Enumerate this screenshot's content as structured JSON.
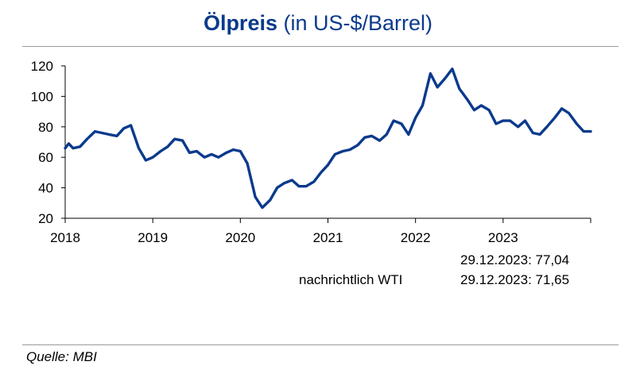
{
  "header": {
    "title_bold": "Ölpreis",
    "title_rest": "(in US-$/Barrel)"
  },
  "notes": {
    "brent_value": "29.12.2023: 77,04",
    "wti_label": "nachrichtlich WTI",
    "wti_value": "29.12.2023: 71,65"
  },
  "footer": {
    "source": "Quelle: MBI"
  },
  "chart_data": {
    "type": "line",
    "title": "Ölpreis (in US-$/Barrel)",
    "xlabel": "",
    "ylabel": "",
    "ylim": [
      20,
      120
    ],
    "xlim": [
      2018,
      2024
    ],
    "yticks": [
      20,
      40,
      60,
      80,
      100,
      120
    ],
    "xticks": [
      2018,
      2019,
      2020,
      2021,
      2022,
      2023
    ],
    "grid": false,
    "legend": "none",
    "color": "#0b3a8c",
    "series": [
      {
        "x": [
          2018.0,
          2018.04,
          2018.09,
          2018.17,
          2018.25,
          2018.34,
          2018.42,
          2018.5,
          2018.59,
          2018.67,
          2018.75,
          2018.84,
          2018.92,
          2019.0,
          2019.09,
          2019.17,
          2019.25,
          2019.34,
          2019.42,
          2019.5,
          2019.59,
          2019.67,
          2019.75,
          2019.84,
          2019.92,
          2020.0,
          2020.08,
          2020.17,
          2020.25,
          2020.34,
          2020.42,
          2020.5,
          2020.59,
          2020.67,
          2020.75,
          2020.84,
          2020.92,
          2021.0,
          2021.08,
          2021.17,
          2021.25,
          2021.34,
          2021.42,
          2021.5,
          2021.59,
          2021.67,
          2021.75,
          2021.84,
          2021.92,
          2022.0,
          2022.08,
          2022.17,
          2022.25,
          2022.34,
          2022.42,
          2022.5,
          2022.59,
          2022.67,
          2022.75,
          2022.84,
          2022.92,
          2023.0,
          2023.08,
          2023.17,
          2023.25,
          2023.34,
          2023.42,
          2023.5,
          2023.59,
          2023.67,
          2023.75,
          2023.84,
          2023.92,
          2024.0
        ],
        "y": [
          66,
          69,
          66,
          67,
          72,
          77,
          76,
          75,
          74,
          79,
          81,
          66,
          58,
          60,
          64,
          67,
          72,
          71,
          63,
          64,
          60,
          62,
          60,
          63,
          65,
          64,
          56,
          34,
          27,
          32,
          40,
          43,
          45,
          41,
          41,
          44,
          50,
          55,
          62,
          64,
          65,
          68,
          73,
          74,
          71,
          75,
          84,
          82,
          75,
          86,
          94,
          115,
          106,
          112,
          118,
          105,
          98,
          91,
          94,
          91,
          82,
          84,
          84,
          80,
          84,
          76,
          75,
          80,
          86,
          92,
          89,
          82,
          77,
          77
        ]
      }
    ]
  }
}
